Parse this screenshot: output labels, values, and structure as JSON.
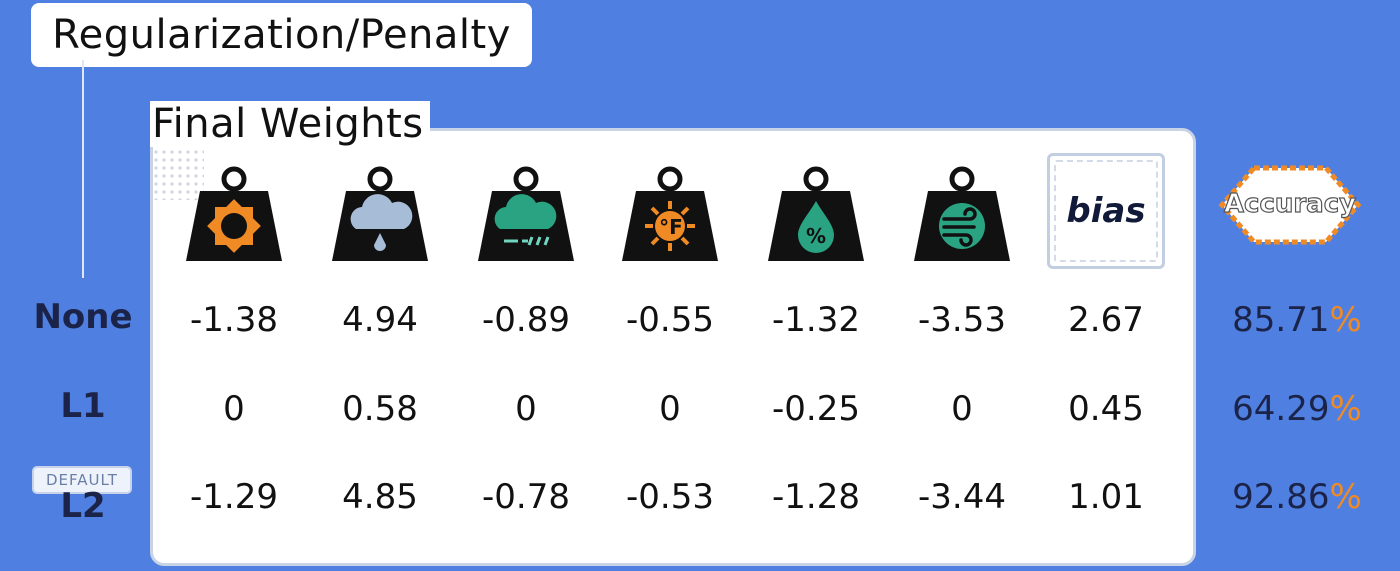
{
  "title": "Regularization/Penalty",
  "panel_label": "Final Weights",
  "bias_label": "bias",
  "accuracy_label": "Accuracy",
  "default_badge": "DEFAULT",
  "percent_sign": "%",
  "feature_icons": [
    "sun-weight-icon",
    "cloud-rain-weight-icon",
    "cloud-wind-weight-icon",
    "temperature-fahrenheit-weight-icon",
    "humidity-percent-weight-icon",
    "wind-weight-icon"
  ],
  "colors": {
    "background": "#4f80e1",
    "icon_orange": "#f08a24",
    "icon_teal": "#2aa382",
    "percent": "#f08a24",
    "row_label": "#1b2348"
  },
  "rows": [
    {
      "label": "None",
      "weights": [
        "-1.38",
        "4.94",
        "-0.89",
        "-0.55",
        "-1.32",
        "-3.53",
        "2.67"
      ],
      "accuracy": "85.71"
    },
    {
      "label": "L1",
      "weights": [
        "0",
        "0.58",
        "0",
        "0",
        "-0.25",
        "0",
        "0.45"
      ],
      "accuracy": "64.29"
    },
    {
      "label": "L2",
      "weights": [
        "-1.29",
        "4.85",
        "-0.78",
        "-0.53",
        "-1.28",
        "-3.44",
        "1.01"
      ],
      "accuracy": "92.86"
    }
  ]
}
